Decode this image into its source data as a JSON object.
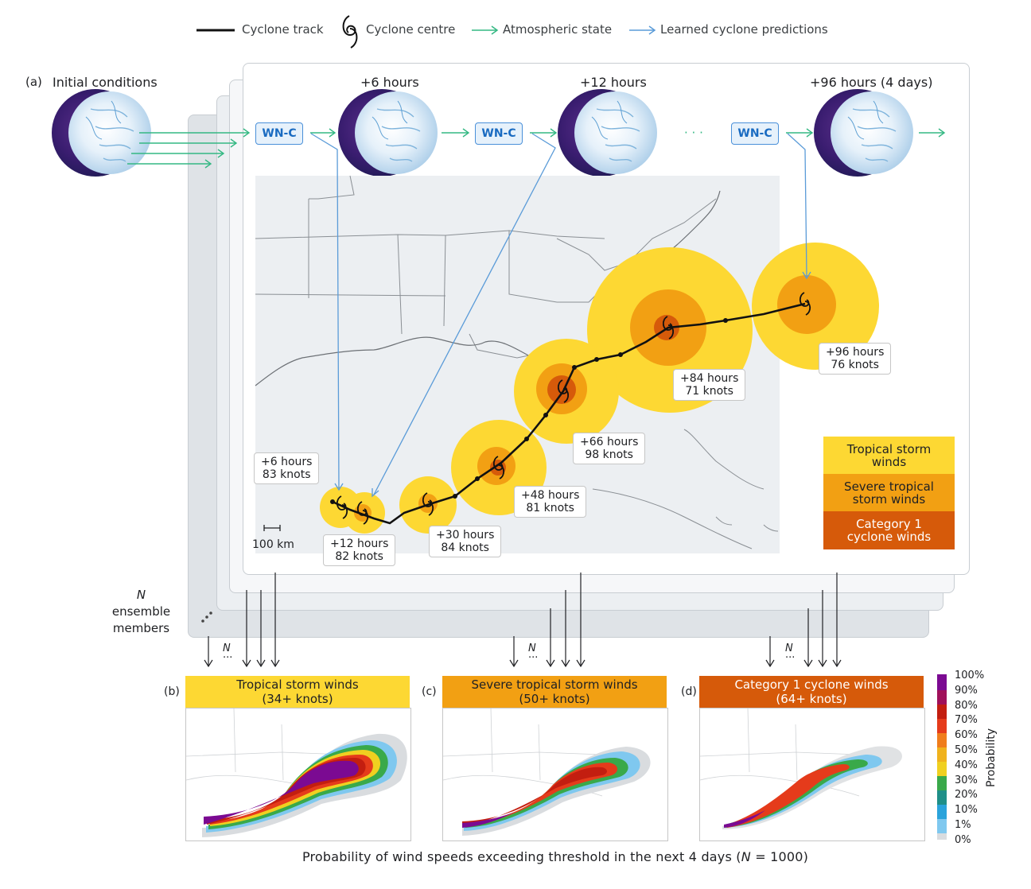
{
  "legend": {
    "track": "Cyclone track",
    "centre": "Cyclone centre",
    "atmos": "Atmospheric state",
    "learned": "Learned cyclone predictions"
  },
  "colors": {
    "atmos": "#34b883",
    "learned": "#5a9bd8",
    "tropical": "#fdd833",
    "severe": "#f2a013",
    "cat1": "#d65a0a"
  },
  "panel_a": {
    "letter": "(a)",
    "initial": "Initial conditions",
    "t6": "+6 hours",
    "t12": "+12 hours",
    "t96": "+96 hours (4 days)",
    "wnc": "WN-C",
    "ellipsis": "· · ·",
    "scale": "100 km",
    "ensemble_n": "N",
    "ensemble_1": "ensemble",
    "ensemble_2": "members"
  },
  "tags": [
    {
      "time": "+6 hours",
      "speed": "83 knots"
    },
    {
      "time": "+12 hours",
      "speed": "82 knots"
    },
    {
      "time": "+30 hours",
      "speed": "84 knots"
    },
    {
      "time": "+48 hours",
      "speed": "81 knots"
    },
    {
      "time": "+66 hours",
      "speed": "98 knots"
    },
    {
      "time": "+84 hours",
      "speed": "71 knots"
    },
    {
      "time": "+96 hours",
      "speed": "76 knots"
    }
  ],
  "wind_legend": {
    "tropical": "Tropical storm winds",
    "severe": "Severe tropical storm winds",
    "cat1": "Category 1 cyclone winds"
  },
  "panels": [
    {
      "letter": "(b)",
      "title": "Tropical storm winds",
      "sub": "(34+ knots)"
    },
    {
      "letter": "(c)",
      "title": "Severe tropical storm winds",
      "sub": "(50+ knots)"
    },
    {
      "letter": "(d)",
      "title": "Category 1 cyclone winds",
      "sub": "(64+ knots)"
    }
  ],
  "arrow_n": "N",
  "arrow_dots": "···",
  "colorbar": {
    "label": "Probability",
    "ticks": [
      "100%",
      "90%",
      "80%",
      "70%",
      "60%",
      "50%",
      "40%",
      "30%",
      "20%",
      "10%",
      "1%",
      "0%"
    ]
  },
  "caption_pre": "Probability of wind speeds exceeding threshold in the next 4 days (",
  "caption_n": "N",
  "caption_post": " = 1000)"
}
